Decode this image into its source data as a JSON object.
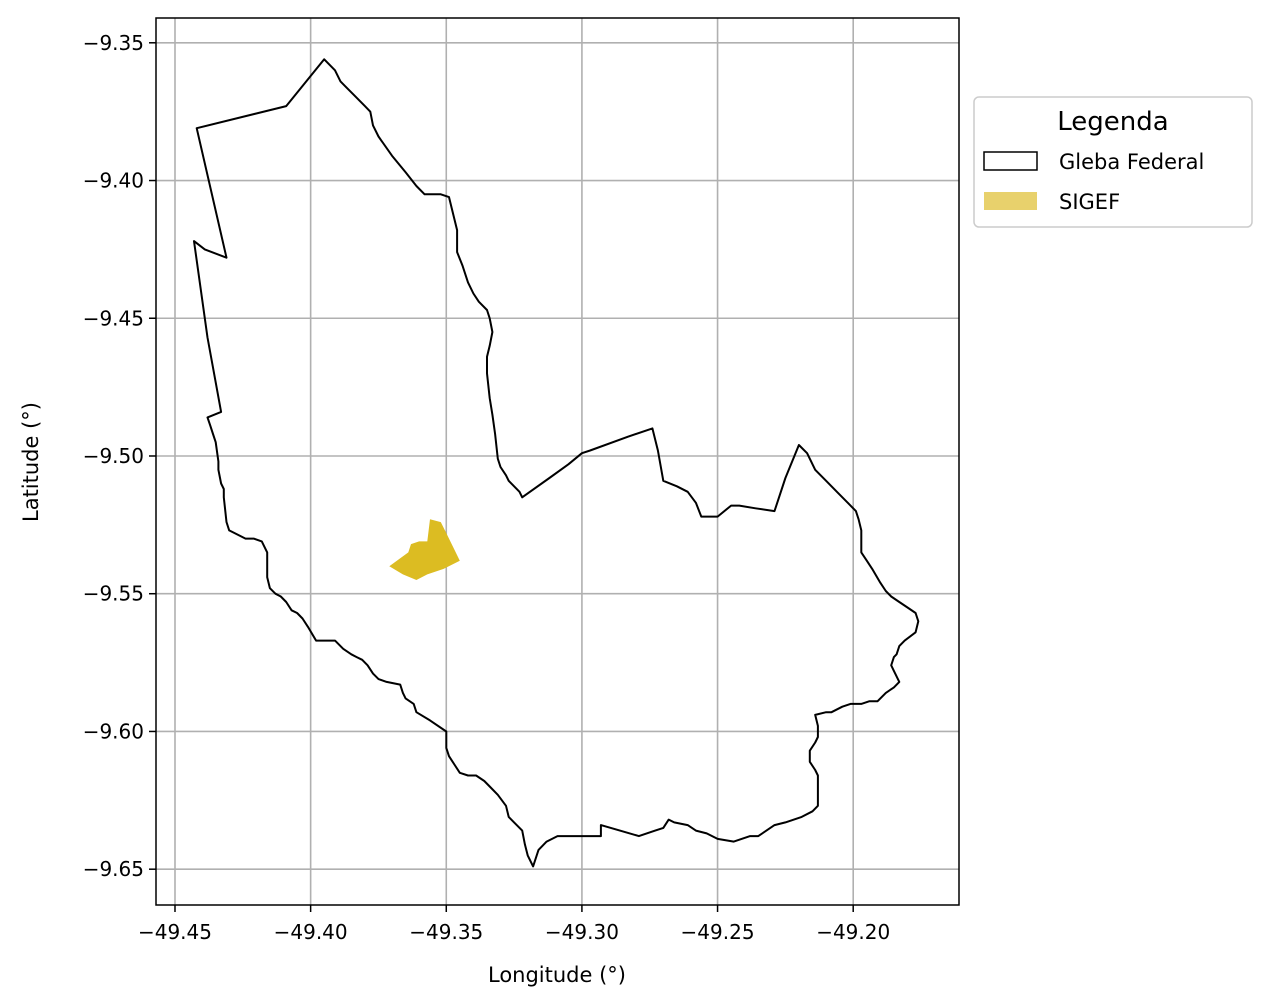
{
  "chart_data": {
    "type": "map",
    "xlabel": "Longitude (°)",
    "ylabel": "Latitude (°)",
    "xlim": [
      -49.457,
      -49.161
    ],
    "ylim": [
      -9.663,
      -9.341
    ],
    "grid": true,
    "x_ticks": [
      {
        "value": -49.45,
        "label": "−49.45"
      },
      {
        "value": -49.4,
        "label": "−49.40"
      },
      {
        "value": -49.35,
        "label": "−49.35"
      },
      {
        "value": -49.3,
        "label": "−49.30"
      },
      {
        "value": -49.25,
        "label": "−49.25"
      },
      {
        "value": -49.2,
        "label": "−49.20"
      }
    ],
    "y_ticks": [
      {
        "value": -9.35,
        "label": "−9.35"
      },
      {
        "value": -9.4,
        "label": "−9.40"
      },
      {
        "value": -9.45,
        "label": "−9.45"
      },
      {
        "value": -9.5,
        "label": "−9.50"
      },
      {
        "value": -9.55,
        "label": "−9.55"
      },
      {
        "value": -9.6,
        "label": "−9.60"
      },
      {
        "value": -9.65,
        "label": "−9.65"
      }
    ],
    "legend": {
      "title": "Legenda",
      "placement": "outside-upper-right",
      "entries": [
        {
          "label": "Gleba Federal",
          "style": "outline",
          "edge_color": "#000000"
        },
        {
          "label": "SIGEF",
          "style": "fill",
          "fill_color": "#e8d16c"
        }
      ]
    },
    "layers": [
      {
        "name": "Gleba Federal",
        "edge_color": "#000000",
        "fill_color": "none",
        "polygon": [
          [
            -49.395,
            -9.356
          ],
          [
            -49.391,
            -9.36
          ],
          [
            -49.389,
            -9.364
          ],
          [
            -49.387,
            -9.366
          ],
          [
            -49.384,
            -9.369
          ],
          [
            -49.38,
            -9.373
          ],
          [
            -49.378,
            -9.375
          ],
          [
            -49.377,
            -9.38
          ],
          [
            -49.375,
            -9.384
          ],
          [
            -49.37,
            -9.391
          ],
          [
            -49.365,
            -9.397
          ],
          [
            -49.361,
            -9.402
          ],
          [
            -49.358,
            -9.405
          ],
          [
            -49.356,
            -9.405
          ],
          [
            -49.352,
            -9.405
          ],
          [
            -49.349,
            -9.406
          ],
          [
            -49.348,
            -9.41
          ],
          [
            -49.347,
            -9.414
          ],
          [
            -49.346,
            -9.418
          ],
          [
            -49.346,
            -9.426
          ],
          [
            -49.344,
            -9.431
          ],
          [
            -49.342,
            -9.437
          ],
          [
            -49.34,
            -9.441
          ],
          [
            -49.338,
            -9.444
          ],
          [
            -49.335,
            -9.447
          ],
          [
            -49.334,
            -9.45
          ],
          [
            -49.333,
            -9.455
          ],
          [
            -49.334,
            -9.46
          ],
          [
            -49.335,
            -9.464
          ],
          [
            -49.335,
            -9.47
          ],
          [
            -49.334,
            -9.479
          ],
          [
            -49.333,
            -9.485
          ],
          [
            -49.332,
            -9.492
          ],
          [
            -49.331,
            -9.501
          ],
          [
            -49.33,
            -9.504
          ],
          [
            -49.328,
            -9.507
          ],
          [
            -49.327,
            -9.509
          ],
          [
            -49.325,
            -9.511
          ],
          [
            -49.323,
            -9.513
          ],
          [
            -49.322,
            -9.515
          ],
          [
            -49.312,
            -9.508
          ],
          [
            -49.305,
            -9.503
          ],
          [
            -49.3,
            -9.499
          ],
          [
            -49.297,
            -9.498
          ],
          [
            -49.283,
            -9.493
          ],
          [
            -49.274,
            -9.49
          ],
          [
            -49.272,
            -9.498
          ],
          [
            -49.27,
            -9.509
          ],
          [
            -49.265,
            -9.511
          ],
          [
            -49.261,
            -9.513
          ],
          [
            -49.258,
            -9.517
          ],
          [
            -49.256,
            -9.522
          ],
          [
            -49.25,
            -9.522
          ],
          [
            -49.245,
            -9.518
          ],
          [
            -49.242,
            -9.518
          ],
          [
            -49.236,
            -9.519
          ],
          [
            -49.229,
            -9.52
          ],
          [
            -49.225,
            -9.508
          ],
          [
            -49.22,
            -9.496
          ],
          [
            -49.217,
            -9.499
          ],
          [
            -49.214,
            -9.505
          ],
          [
            -49.21,
            -9.509
          ],
          [
            -49.206,
            -9.513
          ],
          [
            -49.202,
            -9.517
          ],
          [
            -49.199,
            -9.52
          ],
          [
            -49.198,
            -9.523
          ],
          [
            -49.197,
            -9.527
          ],
          [
            -49.197,
            -9.535
          ],
          [
            -49.195,
            -9.538
          ],
          [
            -49.193,
            -9.541
          ],
          [
            -49.19,
            -9.546
          ],
          [
            -49.188,
            -9.549
          ],
          [
            -49.186,
            -9.551
          ],
          [
            -49.183,
            -9.553
          ],
          [
            -49.18,
            -9.555
          ],
          [
            -49.177,
            -9.557
          ],
          [
            -49.176,
            -9.56
          ],
          [
            -49.177,
            -9.564
          ],
          [
            -49.181,
            -9.567
          ],
          [
            -49.183,
            -9.569
          ],
          [
            -49.184,
            -9.572
          ],
          [
            -49.185,
            -9.573
          ],
          [
            -49.186,
            -9.576
          ],
          [
            -49.185,
            -9.578
          ],
          [
            -49.184,
            -9.58
          ],
          [
            -49.183,
            -9.582
          ],
          [
            -49.185,
            -9.584
          ],
          [
            -49.188,
            -9.586
          ],
          [
            -49.191,
            -9.589
          ],
          [
            -49.194,
            -9.589
          ],
          [
            -49.197,
            -9.59
          ],
          [
            -49.201,
            -9.59
          ],
          [
            -49.204,
            -9.591
          ],
          [
            -49.208,
            -9.593
          ],
          [
            -49.21,
            -9.593
          ],
          [
            -49.214,
            -9.594
          ],
          [
            -49.213,
            -9.598
          ],
          [
            -49.213,
            -9.602
          ],
          [
            -49.214,
            -9.604
          ],
          [
            -49.216,
            -9.607
          ],
          [
            -49.216,
            -9.611
          ],
          [
            -49.214,
            -9.614
          ],
          [
            -49.213,
            -9.616
          ],
          [
            -49.213,
            -9.62
          ],
          [
            -49.213,
            -9.623
          ],
          [
            -49.213,
            -9.627
          ],
          [
            -49.215,
            -9.629
          ],
          [
            -49.219,
            -9.631
          ],
          [
            -49.225,
            -9.633
          ],
          [
            -49.229,
            -9.634
          ],
          [
            -49.235,
            -9.638
          ],
          [
            -49.238,
            -9.638
          ],
          [
            -49.244,
            -9.64
          ],
          [
            -49.25,
            -9.639
          ],
          [
            -49.254,
            -9.637
          ],
          [
            -49.258,
            -9.636
          ],
          [
            -49.261,
            -9.634
          ],
          [
            -49.266,
            -9.633
          ],
          [
            -49.268,
            -9.632
          ],
          [
            -49.27,
            -9.635
          ],
          [
            -49.273,
            -9.636
          ],
          [
            -49.279,
            -9.638
          ],
          [
            -49.286,
            -9.636
          ],
          [
            -49.293,
            -9.634
          ],
          [
            -49.293,
            -9.638
          ],
          [
            -49.298,
            -9.638
          ],
          [
            -49.303,
            -9.638
          ],
          [
            -49.309,
            -9.638
          ],
          [
            -49.313,
            -9.64
          ],
          [
            -49.316,
            -9.643
          ],
          [
            -49.318,
            -9.649
          ],
          [
            -49.32,
            -9.645
          ],
          [
            -49.321,
            -9.641
          ],
          [
            -49.322,
            -9.636
          ],
          [
            -49.325,
            -9.633
          ],
          [
            -49.327,
            -9.631
          ],
          [
            -49.328,
            -9.627
          ],
          [
            -49.331,
            -9.623
          ],
          [
            -49.334,
            -9.62
          ],
          [
            -49.336,
            -9.618
          ],
          [
            -49.339,
            -9.616
          ],
          [
            -49.342,
            -9.616
          ],
          [
            -49.345,
            -9.615
          ],
          [
            -49.347,
            -9.612
          ],
          [
            -49.349,
            -9.609
          ],
          [
            -49.35,
            -9.606
          ],
          [
            -49.35,
            -9.6
          ],
          [
            -49.356,
            -9.596
          ],
          [
            -49.361,
            -9.593
          ],
          [
            -49.362,
            -9.59
          ],
          [
            -49.365,
            -9.588
          ],
          [
            -49.366,
            -9.586
          ],
          [
            -49.367,
            -9.583
          ],
          [
            -49.372,
            -9.582
          ],
          [
            -49.375,
            -9.581
          ],
          [
            -49.377,
            -9.579
          ],
          [
            -49.379,
            -9.576
          ],
          [
            -49.381,
            -9.574
          ],
          [
            -49.383,
            -9.573
          ],
          [
            -49.385,
            -9.572
          ],
          [
            -49.388,
            -9.57
          ],
          [
            -49.391,
            -9.567
          ],
          [
            -49.395,
            -9.567
          ],
          [
            -49.398,
            -9.567
          ],
          [
            -49.401,
            -9.562
          ],
          [
            -49.403,
            -9.559
          ],
          [
            -49.405,
            -9.557
          ],
          [
            -49.407,
            -9.556
          ],
          [
            -49.409,
            -9.553
          ],
          [
            -49.411,
            -9.551
          ],
          [
            -49.413,
            -9.55
          ],
          [
            -49.415,
            -9.548
          ],
          [
            -49.416,
            -9.544
          ],
          [
            -49.416,
            -9.54
          ],
          [
            -49.416,
            -9.535
          ],
          [
            -49.418,
            -9.531
          ],
          [
            -49.421,
            -9.53
          ],
          [
            -49.424,
            -9.53
          ],
          [
            -49.426,
            -9.529
          ],
          [
            -49.43,
            -9.527
          ],
          [
            -49.431,
            -9.524
          ],
          [
            -49.432,
            -9.515
          ],
          [
            -49.432,
            -9.512
          ],
          [
            -49.433,
            -9.51
          ],
          [
            -49.434,
            -9.505
          ],
          [
            -49.434,
            -9.502
          ],
          [
            -49.435,
            -9.495
          ],
          [
            -49.436,
            -9.492
          ],
          [
            -49.437,
            -9.489
          ],
          [
            -49.438,
            -9.486
          ],
          [
            -49.433,
            -9.484
          ],
          [
            -49.438,
            -9.457
          ],
          [
            -49.443,
            -9.422
          ],
          [
            -49.439,
            -9.425
          ],
          [
            -49.431,
            -9.428
          ],
          [
            -49.442,
            -9.381
          ],
          [
            -49.409,
            -9.373
          ],
          [
            -49.395,
            -9.356
          ]
        ]
      },
      {
        "name": "SIGEF",
        "edge_color": "none",
        "fill_color": "#dcbc22",
        "polygon": [
          [
            -49.371,
            -9.54
          ],
          [
            -49.366,
            -9.543
          ],
          [
            -49.361,
            -9.545
          ],
          [
            -49.357,
            -9.543
          ],
          [
            -49.351,
            -9.541
          ],
          [
            -49.345,
            -9.538
          ],
          [
            -49.347,
            -9.534
          ],
          [
            -49.35,
            -9.528
          ],
          [
            -49.352,
            -9.524
          ],
          [
            -49.356,
            -9.523
          ],
          [
            -49.357,
            -9.531
          ],
          [
            -49.36,
            -9.531
          ],
          [
            -49.363,
            -9.532
          ],
          [
            -49.364,
            -9.535
          ]
        ]
      }
    ]
  }
}
